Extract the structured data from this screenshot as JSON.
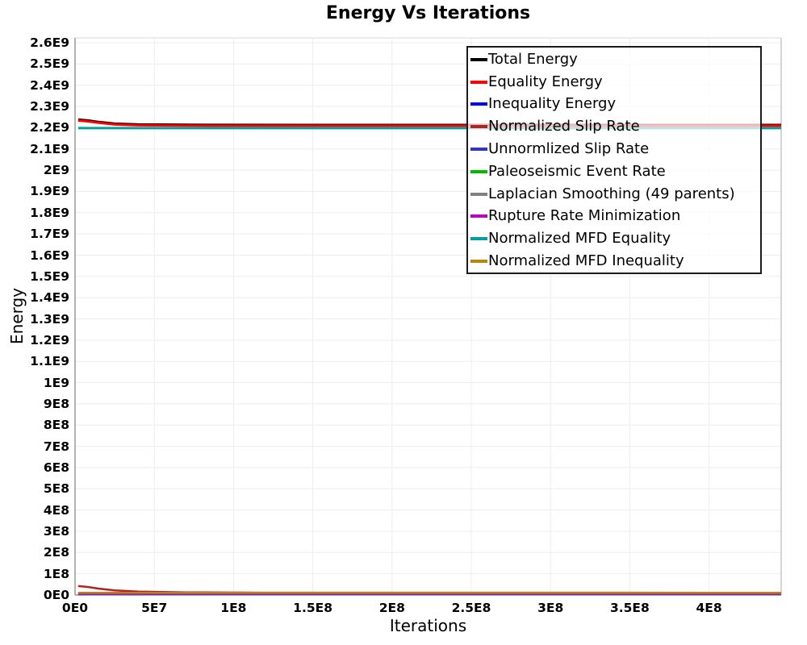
{
  "page": {
    "title": "Energy Vs Iterations"
  },
  "chart_data": {
    "type": "line",
    "title": "Energy Vs Iterations",
    "xlabel": "Iterations",
    "ylabel": "Energy",
    "xlim": [
      0,
      445500000
    ],
    "ylim": [
      0,
      2622800000
    ],
    "grid": true,
    "legend_position": "top-right",
    "x_ticks": [
      {
        "v": 0,
        "label": "0E0"
      },
      {
        "v": 50000000,
        "label": "5E7"
      },
      {
        "v": 100000000,
        "label": "1E8"
      },
      {
        "v": 150000000,
        "label": "1.5E8"
      },
      {
        "v": 200000000,
        "label": "2E8"
      },
      {
        "v": 250000000,
        "label": "2.5E8"
      },
      {
        "v": 300000000,
        "label": "3E8"
      },
      {
        "v": 350000000,
        "label": "3.5E8"
      },
      {
        "v": 400000000,
        "label": "4E8"
      }
    ],
    "y_ticks": [
      {
        "v": 0,
        "label": "0E0"
      },
      {
        "v": 100000000,
        "label": "1E8"
      },
      {
        "v": 200000000,
        "label": "2E8"
      },
      {
        "v": 300000000,
        "label": "3E8"
      },
      {
        "v": 400000000,
        "label": "4E8"
      },
      {
        "v": 500000000,
        "label": "5E8"
      },
      {
        "v": 600000000,
        "label": "6E8"
      },
      {
        "v": 700000000,
        "label": "7E8"
      },
      {
        "v": 800000000,
        "label": "8E8"
      },
      {
        "v": 900000000,
        "label": "9E8"
      },
      {
        "v": 1000000000,
        "label": "1E9"
      },
      {
        "v": 1100000000,
        "label": "1.1E9"
      },
      {
        "v": 1200000000,
        "label": "1.2E9"
      },
      {
        "v": 1300000000,
        "label": "1.3E9"
      },
      {
        "v": 1400000000,
        "label": "1.4E9"
      },
      {
        "v": 1500000000,
        "label": "1.5E9"
      },
      {
        "v": 1600000000,
        "label": "1.6E9"
      },
      {
        "v": 1700000000,
        "label": "1.7E9"
      },
      {
        "v": 1800000000,
        "label": "1.8E9"
      },
      {
        "v": 1900000000,
        "label": "1.9E9"
      },
      {
        "v": 2000000000,
        "label": "2E9"
      },
      {
        "v": 2100000000,
        "label": "2.1E9"
      },
      {
        "v": 2200000000,
        "label": "2.2E9"
      },
      {
        "v": 2300000000,
        "label": "2.3E9"
      },
      {
        "v": 2400000000,
        "label": "2.4E9"
      },
      {
        "v": 2500000000,
        "label": "2.5E9"
      },
      {
        "v": 2600000000,
        "label": "2.6E9"
      }
    ],
    "series": [
      {
        "name": "Total Energy",
        "color": "#000000",
        "width": 3,
        "points": [
          [
            2000000,
            2238000000
          ],
          [
            8000000,
            2234000000
          ],
          [
            15000000,
            2227000000
          ],
          [
            25000000,
            2219000000
          ],
          [
            40000000,
            2215000000
          ],
          [
            70000000,
            2213500000
          ],
          [
            150000000,
            2213000000
          ],
          [
            445500000,
            2213000000
          ]
        ]
      },
      {
        "name": "Equality Energy",
        "color": "#ff0000",
        "width": 3,
        "points": [
          [
            2000000,
            2234000000
          ],
          [
            8000000,
            2230000000
          ],
          [
            15000000,
            2223000000
          ],
          [
            25000000,
            2215000000
          ],
          [
            40000000,
            2211500000
          ],
          [
            70000000,
            2210000000
          ],
          [
            150000000,
            2209500000
          ],
          [
            445500000,
            2209500000
          ]
        ]
      },
      {
        "name": "Inequality Energy",
        "color": "#0000ff",
        "width": 2.5,
        "points": [
          [
            2000000,
            4000000
          ],
          [
            445500000,
            4000000
          ]
        ]
      },
      {
        "name": "Normalized Slip Rate",
        "color": "#b22222",
        "width": 2.5,
        "points": [
          [
            2000000,
            42000000
          ],
          [
            8000000,
            38000000
          ],
          [
            15000000,
            30000000
          ],
          [
            25000000,
            22000000
          ],
          [
            40000000,
            16000000
          ],
          [
            70000000,
            12500000
          ],
          [
            120000000,
            11000000
          ],
          [
            445500000,
            10500000
          ]
        ]
      },
      {
        "name": "Unnormlized Slip Rate",
        "color": "#3333cc",
        "width": 2.5,
        "points": [
          [
            2000000,
            5000000
          ],
          [
            445500000,
            5000000
          ]
        ]
      },
      {
        "name": "Paleoseismic Event Rate",
        "color": "#00bb00",
        "width": 2.5,
        "points": [
          [
            2000000,
            7500000
          ],
          [
            445500000,
            7500000
          ]
        ]
      },
      {
        "name": "Laplacian Smoothing (49 parents)",
        "color": "#808080",
        "width": 2.5,
        "points": [
          [
            2000000,
            6000000
          ],
          [
            445500000,
            6000000
          ]
        ]
      },
      {
        "name": "Rupture Rate Minimization",
        "color": "#bb00bb",
        "width": 2.5,
        "points": [
          [
            2000000,
            6500000
          ],
          [
            445500000,
            6500000
          ]
        ]
      },
      {
        "name": "Normalized MFD Equality",
        "color": "#00a0a0",
        "width": 3,
        "points": [
          [
            2000000,
            2198000000
          ],
          [
            445500000,
            2198000000
          ]
        ]
      },
      {
        "name": "Normalized MFD Inequality",
        "color": "#b8860b",
        "width": 2.5,
        "points": [
          [
            2000000,
            10500000
          ],
          [
            445500000,
            10500000
          ]
        ]
      }
    ]
  }
}
